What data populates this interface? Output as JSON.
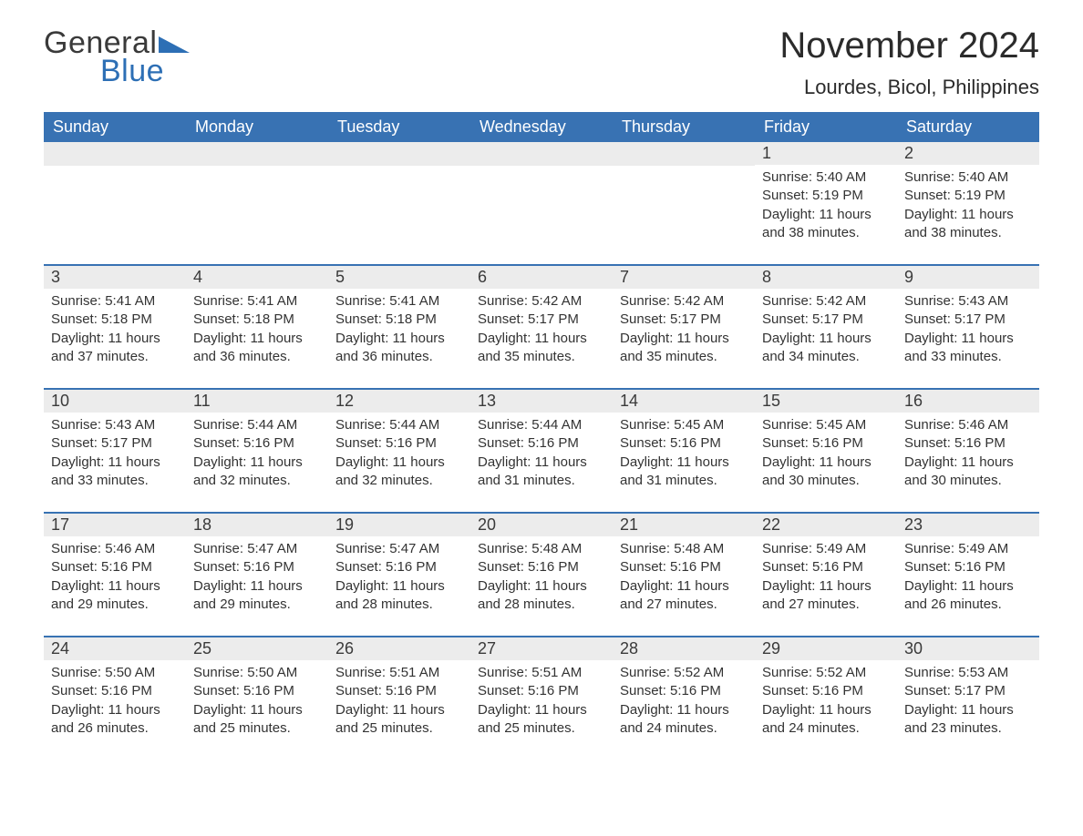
{
  "logo": {
    "text_general": "General",
    "text_blue": "Blue",
    "triangle_color": "#2d6fb5"
  },
  "title": "November 2024",
  "location": "Lourdes, Bicol, Philippines",
  "colors": {
    "header_bg": "#3872b3",
    "header_text": "#ffffff",
    "daynum_bg": "#ececec",
    "row_divider": "#3872b3",
    "body_text": "#333333",
    "page_bg": "#ffffff"
  },
  "typography": {
    "title_fontsize": 40,
    "location_fontsize": 22,
    "weekday_fontsize": 18,
    "daynum_fontsize": 18,
    "detail_fontsize": 15
  },
  "weekdays": [
    "Sunday",
    "Monday",
    "Tuesday",
    "Wednesday",
    "Thursday",
    "Friday",
    "Saturday"
  ],
  "weeks": [
    [
      {
        "empty": true
      },
      {
        "empty": true
      },
      {
        "empty": true
      },
      {
        "empty": true
      },
      {
        "empty": true
      },
      {
        "day": 1,
        "sunrise": "5:40 AM",
        "sunset": "5:19 PM",
        "daylight": "11 hours and 38 minutes."
      },
      {
        "day": 2,
        "sunrise": "5:40 AM",
        "sunset": "5:19 PM",
        "daylight": "11 hours and 38 minutes."
      }
    ],
    [
      {
        "day": 3,
        "sunrise": "5:41 AM",
        "sunset": "5:18 PM",
        "daylight": "11 hours and 37 minutes."
      },
      {
        "day": 4,
        "sunrise": "5:41 AM",
        "sunset": "5:18 PM",
        "daylight": "11 hours and 36 minutes."
      },
      {
        "day": 5,
        "sunrise": "5:41 AM",
        "sunset": "5:18 PM",
        "daylight": "11 hours and 36 minutes."
      },
      {
        "day": 6,
        "sunrise": "5:42 AM",
        "sunset": "5:17 PM",
        "daylight": "11 hours and 35 minutes."
      },
      {
        "day": 7,
        "sunrise": "5:42 AM",
        "sunset": "5:17 PM",
        "daylight": "11 hours and 35 minutes."
      },
      {
        "day": 8,
        "sunrise": "5:42 AM",
        "sunset": "5:17 PM",
        "daylight": "11 hours and 34 minutes."
      },
      {
        "day": 9,
        "sunrise": "5:43 AM",
        "sunset": "5:17 PM",
        "daylight": "11 hours and 33 minutes."
      }
    ],
    [
      {
        "day": 10,
        "sunrise": "5:43 AM",
        "sunset": "5:17 PM",
        "daylight": "11 hours and 33 minutes."
      },
      {
        "day": 11,
        "sunrise": "5:44 AM",
        "sunset": "5:16 PM",
        "daylight": "11 hours and 32 minutes."
      },
      {
        "day": 12,
        "sunrise": "5:44 AM",
        "sunset": "5:16 PM",
        "daylight": "11 hours and 32 minutes."
      },
      {
        "day": 13,
        "sunrise": "5:44 AM",
        "sunset": "5:16 PM",
        "daylight": "11 hours and 31 minutes."
      },
      {
        "day": 14,
        "sunrise": "5:45 AM",
        "sunset": "5:16 PM",
        "daylight": "11 hours and 31 minutes."
      },
      {
        "day": 15,
        "sunrise": "5:45 AM",
        "sunset": "5:16 PM",
        "daylight": "11 hours and 30 minutes."
      },
      {
        "day": 16,
        "sunrise": "5:46 AM",
        "sunset": "5:16 PM",
        "daylight": "11 hours and 30 minutes."
      }
    ],
    [
      {
        "day": 17,
        "sunrise": "5:46 AM",
        "sunset": "5:16 PM",
        "daylight": "11 hours and 29 minutes."
      },
      {
        "day": 18,
        "sunrise": "5:47 AM",
        "sunset": "5:16 PM",
        "daylight": "11 hours and 29 minutes."
      },
      {
        "day": 19,
        "sunrise": "5:47 AM",
        "sunset": "5:16 PM",
        "daylight": "11 hours and 28 minutes."
      },
      {
        "day": 20,
        "sunrise": "5:48 AM",
        "sunset": "5:16 PM",
        "daylight": "11 hours and 28 minutes."
      },
      {
        "day": 21,
        "sunrise": "5:48 AM",
        "sunset": "5:16 PM",
        "daylight": "11 hours and 27 minutes."
      },
      {
        "day": 22,
        "sunrise": "5:49 AM",
        "sunset": "5:16 PM",
        "daylight": "11 hours and 27 minutes."
      },
      {
        "day": 23,
        "sunrise": "5:49 AM",
        "sunset": "5:16 PM",
        "daylight": "11 hours and 26 minutes."
      }
    ],
    [
      {
        "day": 24,
        "sunrise": "5:50 AM",
        "sunset": "5:16 PM",
        "daylight": "11 hours and 26 minutes."
      },
      {
        "day": 25,
        "sunrise": "5:50 AM",
        "sunset": "5:16 PM",
        "daylight": "11 hours and 25 minutes."
      },
      {
        "day": 26,
        "sunrise": "5:51 AM",
        "sunset": "5:16 PM",
        "daylight": "11 hours and 25 minutes."
      },
      {
        "day": 27,
        "sunrise": "5:51 AM",
        "sunset": "5:16 PM",
        "daylight": "11 hours and 25 minutes."
      },
      {
        "day": 28,
        "sunrise": "5:52 AM",
        "sunset": "5:16 PM",
        "daylight": "11 hours and 24 minutes."
      },
      {
        "day": 29,
        "sunrise": "5:52 AM",
        "sunset": "5:16 PM",
        "daylight": "11 hours and 24 minutes."
      },
      {
        "day": 30,
        "sunrise": "5:53 AM",
        "sunset": "5:17 PM",
        "daylight": "11 hours and 23 minutes."
      }
    ]
  ],
  "labels": {
    "sunrise": "Sunrise: ",
    "sunset": "Sunset: ",
    "daylight": "Daylight: "
  }
}
